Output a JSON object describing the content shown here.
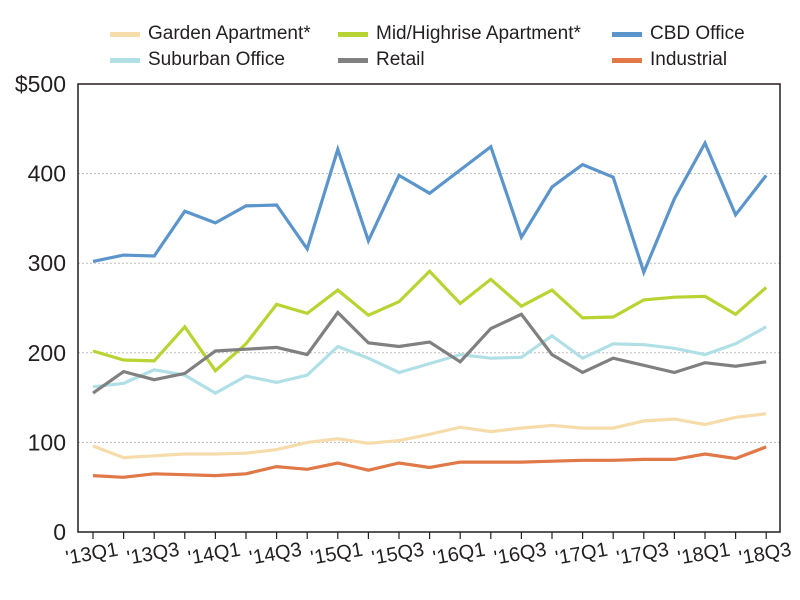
{
  "chart_data": {
    "type": "line",
    "title": "",
    "xlabel": "",
    "ylabel": "",
    "ylim": [
      0,
      500
    ],
    "y_ticks": [
      {
        "value": 0,
        "label": "0"
      },
      {
        "value": 100,
        "label": "100"
      },
      {
        "value": 200,
        "label": "200"
      },
      {
        "value": 300,
        "label": "300"
      },
      {
        "value": 400,
        "label": "400"
      },
      {
        "value": 500,
        "label": "$500"
      }
    ],
    "categories": [
      "'13Q1",
      "'13Q2",
      "'13Q3",
      "'13Q4",
      "'14Q1",
      "'14Q2",
      "'14Q3",
      "'14Q4",
      "'15Q1",
      "'15Q2",
      "'15Q3",
      "'15Q4",
      "'16Q1",
      "'16Q2",
      "'16Q3",
      "'16Q4",
      "'17Q1",
      "'17Q2",
      "'17Q3",
      "'17Q4",
      "'18Q1",
      "'18Q2",
      "'18Q3"
    ],
    "x_tick_labels": [
      "'13Q1",
      "'13Q3",
      "'14Q1",
      "'14Q3",
      "'15Q1",
      "'15Q3",
      "'16Q1",
      "'16Q3",
      "'17Q1",
      "'17Q3",
      "'18Q1",
      "'18Q3"
    ],
    "grid": "horizontal dashed",
    "legend_position": "top",
    "series": [
      {
        "name": "Garden Apartment*",
        "color": "#f5dcaa",
        "values": [
          96,
          83,
          85,
          87,
          87,
          88,
          92,
          100,
          104,
          99,
          102,
          109,
          117,
          112,
          116,
          119,
          116,
          116,
          124,
          126,
          120,
          128,
          132
        ]
      },
      {
        "name": "Mid/Highrise Apartment*",
        "color": "#b8d432",
        "values": [
          202,
          192,
          191,
          229,
          180,
          210,
          254,
          244,
          270,
          242,
          257,
          291,
          255,
          282,
          252,
          270,
          239,
          240,
          259,
          262,
          263,
          243,
          273
        ]
      },
      {
        "name": "CBD Office",
        "color": "#5b95cc",
        "values": [
          302,
          309,
          308,
          358,
          345,
          364,
          365,
          316,
          427,
          325,
          398,
          378,
          404,
          430,
          329,
          385,
          410,
          396,
          290,
          372,
          434,
          354,
          398
        ]
      },
      {
        "name": "Suburban Office",
        "color": "#b0e0e6",
        "values": [
          162,
          166,
          181,
          175,
          155,
          174,
          167,
          175,
          207,
          194,
          178,
          188,
          198,
          194,
          195,
          219,
          194,
          210,
          209,
          205,
          198,
          210,
          229
        ]
      },
      {
        "name": "Retail",
        "color": "#808080",
        "values": [
          155,
          179,
          170,
          177,
          202,
          204,
          206,
          198,
          245,
          211,
          207,
          212,
          190,
          227,
          243,
          198,
          178,
          194,
          186,
          178,
          189,
          185,
          190
        ]
      },
      {
        "name": "Industrial",
        "color": "#e07848",
        "values": [
          63,
          61,
          65,
          64,
          63,
          65,
          73,
          70,
          77,
          69,
          77,
          72,
          78,
          78,
          78,
          79,
          80,
          80,
          81,
          81,
          87,
          82,
          95
        ]
      }
    ]
  }
}
